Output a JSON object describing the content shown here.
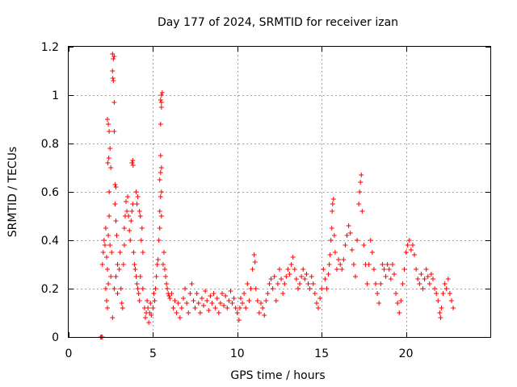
{
  "chart_data": {
    "type": "scatter",
    "title": "Day 177 of 2024, SRMTID for receiver izan",
    "xlabel": "GPS time / hours",
    "ylabel": "SRMTID / TECUs",
    "xlim": [
      0,
      25
    ],
    "ylim": [
      0,
      1.2
    ],
    "xticks": [
      "0",
      "5",
      "10",
      "15",
      "20"
    ],
    "xtick_values": [
      0,
      5,
      10,
      15,
      20
    ],
    "yticks": [
      "0",
      "0.2",
      "0.4",
      "0.6",
      "0.8",
      "1",
      "1.2"
    ],
    "ytick_values": [
      0,
      0.2,
      0.4,
      0.6,
      0.8,
      1.0,
      1.2
    ],
    "grid": true,
    "marker": "+",
    "color": "#ff0000",
    "series": [
      {
        "name": "SRMTID",
        "points": [
          [
            1.9,
            0.0
          ],
          [
            1.95,
            0.0
          ],
          [
            2.0,
            0.0
          ],
          [
            2.0,
            0.3
          ],
          [
            2.05,
            0.35
          ],
          [
            2.1,
            0.4
          ],
          [
            2.15,
            0.38
          ],
          [
            2.2,
            0.45
          ],
          [
            2.25,
            0.33
          ],
          [
            2.3,
            0.28
          ],
          [
            2.35,
            0.42
          ],
          [
            2.4,
            0.5
          ],
          [
            2.45,
            0.38
          ],
          [
            2.5,
            0.25
          ],
          [
            2.55,
            0.35
          ],
          [
            2.2,
            0.2
          ],
          [
            2.25,
            0.15
          ],
          [
            2.3,
            0.12
          ],
          [
            2.35,
            0.22
          ],
          [
            2.3,
            0.9
          ],
          [
            2.35,
            0.88
          ],
          [
            2.4,
            0.85
          ],
          [
            2.32,
            0.72
          ],
          [
            2.38,
            0.74
          ],
          [
            2.4,
            0.6
          ],
          [
            2.45,
            0.78
          ],
          [
            2.5,
            0.7
          ],
          [
            2.6,
            1.17
          ],
          [
            2.65,
            1.15
          ],
          [
            2.7,
            1.16
          ],
          [
            2.6,
            1.1
          ],
          [
            2.62,
            1.07
          ],
          [
            2.65,
            1.06
          ],
          [
            2.7,
            0.97
          ],
          [
            2.7,
            0.85
          ],
          [
            2.75,
            0.63
          ],
          [
            2.8,
            0.62
          ],
          [
            2.75,
            0.55
          ],
          [
            2.8,
            0.48
          ],
          [
            2.85,
            0.42
          ],
          [
            2.9,
            0.3
          ],
          [
            2.6,
            0.08
          ],
          [
            2.7,
            0.2
          ],
          [
            2.8,
            0.25
          ],
          [
            2.9,
            0.18
          ],
          [
            3.0,
            0.28
          ],
          [
            3.05,
            0.35
          ],
          [
            3.1,
            0.2
          ],
          [
            3.15,
            0.14
          ],
          [
            3.2,
            0.12
          ],
          [
            3.25,
            0.3
          ],
          [
            3.3,
            0.38
          ],
          [
            3.3,
            0.45
          ],
          [
            3.35,
            0.5
          ],
          [
            3.4,
            0.56
          ],
          [
            3.45,
            0.52
          ],
          [
            3.5,
            0.58
          ],
          [
            3.55,
            0.5
          ],
          [
            3.6,
            0.44
          ],
          [
            3.65,
            0.4
          ],
          [
            3.7,
            0.48
          ],
          [
            3.75,
            0.52
          ],
          [
            3.8,
            0.55
          ],
          [
            3.75,
            0.72
          ],
          [
            3.8,
            0.73
          ],
          [
            3.82,
            0.71
          ],
          [
            3.85,
            0.35
          ],
          [
            3.9,
            0.3
          ],
          [
            3.95,
            0.28
          ],
          [
            4.0,
            0.25
          ],
          [
            4.05,
            0.22
          ],
          [
            4.1,
            0.2
          ],
          [
            4.15,
            0.18
          ],
          [
            4.2,
            0.15
          ],
          [
            4.25,
            0.25
          ],
          [
            4.3,
            0.4
          ],
          [
            4.35,
            0.45
          ],
          [
            4.4,
            0.35
          ],
          [
            4.0,
            0.6
          ],
          [
            4.05,
            0.55
          ],
          [
            4.1,
            0.58
          ],
          [
            4.2,
            0.52
          ],
          [
            4.25,
            0.5
          ],
          [
            4.4,
            0.2
          ],
          [
            4.5,
            0.12
          ],
          [
            4.55,
            0.08
          ],
          [
            4.6,
            0.1
          ],
          [
            4.65,
            0.15
          ],
          [
            4.7,
            0.12
          ],
          [
            4.75,
            0.06
          ],
          [
            4.8,
            0.1
          ],
          [
            4.85,
            0.14
          ],
          [
            4.9,
            0.09
          ],
          [
            5.0,
            0.12
          ],
          [
            5.05,
            0.18
          ],
          [
            5.1,
            0.15
          ],
          [
            5.15,
            0.2
          ],
          [
            5.2,
            0.25
          ],
          [
            5.25,
            0.3
          ],
          [
            5.3,
            0.32
          ],
          [
            5.35,
            0.4
          ],
          [
            5.4,
            0.45
          ],
          [
            5.4,
            0.52
          ],
          [
            5.45,
            0.58
          ],
          [
            5.5,
            0.6
          ],
          [
            5.5,
            0.5
          ],
          [
            5.4,
            0.65
          ],
          [
            5.45,
            0.68
          ],
          [
            5.5,
            0.7
          ],
          [
            5.45,
            0.75
          ],
          [
            5.45,
            0.88
          ],
          [
            5.5,
            0.95
          ],
          [
            5.45,
            0.98
          ],
          [
            5.5,
            1.0
          ],
          [
            5.55,
            1.01
          ],
          [
            5.5,
            0.97
          ],
          [
            5.6,
            0.3
          ],
          [
            5.65,
            0.35
          ],
          [
            5.7,
            0.28
          ],
          [
            5.75,
            0.25
          ],
          [
            5.8,
            0.22
          ],
          [
            5.85,
            0.2
          ],
          [
            5.9,
            0.18
          ],
          [
            5.95,
            0.17
          ],
          [
            6.0,
            0.16
          ],
          [
            6.1,
            0.18
          ],
          [
            6.2,
            0.12
          ],
          [
            6.3,
            0.15
          ],
          [
            6.4,
            0.1
          ],
          [
            6.5,
            0.14
          ],
          [
            6.6,
            0.08
          ],
          [
            6.7,
            0.12
          ],
          [
            6.8,
            0.16
          ],
          [
            6.9,
            0.2
          ],
          [
            7.0,
            0.14
          ],
          [
            7.1,
            0.1
          ],
          [
            7.2,
            0.18
          ],
          [
            7.3,
            0.22
          ],
          [
            7.4,
            0.15
          ],
          [
            7.5,
            0.12
          ],
          [
            7.6,
            0.18
          ],
          [
            7.7,
            0.14
          ],
          [
            7.8,
            0.1
          ],
          [
            7.9,
            0.16
          ],
          [
            8.0,
            0.13
          ],
          [
            8.1,
            0.19
          ],
          [
            8.2,
            0.15
          ],
          [
            8.3,
            0.11
          ],
          [
            8.4,
            0.17
          ],
          [
            8.5,
            0.14
          ],
          [
            8.6,
            0.18
          ],
          [
            8.7,
            0.12
          ],
          [
            8.8,
            0.16
          ],
          [
            8.9,
            0.1
          ],
          [
            9.0,
            0.14
          ],
          [
            9.1,
            0.18
          ],
          [
            9.2,
            0.13
          ],
          [
            9.3,
            0.17
          ],
          [
            9.4,
            0.12
          ],
          [
            9.5,
            0.15
          ],
          [
            9.6,
            0.19
          ],
          [
            9.7,
            0.14
          ],
          [
            9.8,
            0.16
          ],
          [
            9.9,
            0.12
          ],
          [
            10.0,
            0.1
          ],
          [
            10.1,
            0.07
          ],
          [
            10.15,
            0.12
          ],
          [
            10.2,
            0.16
          ],
          [
            10.3,
            0.14
          ],
          [
            10.4,
            0.18
          ],
          [
            10.5,
            0.12
          ],
          [
            10.6,
            0.22
          ],
          [
            10.7,
            0.15
          ],
          [
            10.8,
            0.2
          ],
          [
            10.9,
            0.28
          ],
          [
            11.0,
            0.34
          ],
          [
            11.05,
            0.31
          ],
          [
            11.1,
            0.2
          ],
          [
            11.2,
            0.15
          ],
          [
            11.3,
            0.1
          ],
          [
            11.4,
            0.14
          ],
          [
            11.5,
            0.12
          ],
          [
            11.6,
            0.09
          ],
          [
            11.7,
            0.15
          ],
          [
            11.8,
            0.18
          ],
          [
            11.9,
            0.22
          ],
          [
            12.0,
            0.24
          ],
          [
            12.1,
            0.2
          ],
          [
            12.2,
            0.25
          ],
          [
            12.3,
            0.15
          ],
          [
            12.4,
            0.22
          ],
          [
            12.5,
            0.28
          ],
          [
            12.6,
            0.24
          ],
          [
            12.7,
            0.18
          ],
          [
            12.8,
            0.22
          ],
          [
            12.9,
            0.25
          ],
          [
            13.0,
            0.28
          ],
          [
            13.1,
            0.26
          ],
          [
            13.2,
            0.3
          ],
          [
            13.3,
            0.33
          ],
          [
            13.4,
            0.28
          ],
          [
            13.5,
            0.24
          ],
          [
            13.6,
            0.2
          ],
          [
            13.7,
            0.22
          ],
          [
            13.8,
            0.25
          ],
          [
            13.9,
            0.28
          ],
          [
            14.0,
            0.24
          ],
          [
            14.1,
            0.26
          ],
          [
            14.2,
            0.22
          ],
          [
            14.3,
            0.2
          ],
          [
            14.4,
            0.25
          ],
          [
            14.5,
            0.22
          ],
          [
            14.6,
            0.18
          ],
          [
            14.7,
            0.14
          ],
          [
            14.8,
            0.12
          ],
          [
            14.9,
            0.16
          ],
          [
            15.0,
            0.2
          ],
          [
            15.1,
            0.28
          ],
          [
            15.2,
            0.24
          ],
          [
            15.3,
            0.2
          ],
          [
            15.4,
            0.26
          ],
          [
            15.45,
            0.3
          ],
          [
            15.5,
            0.34
          ],
          [
            15.55,
            0.4
          ],
          [
            15.6,
            0.45
          ],
          [
            15.62,
            0.52
          ],
          [
            15.65,
            0.55
          ],
          [
            15.7,
            0.57
          ],
          [
            15.75,
            0.42
          ],
          [
            15.8,
            0.35
          ],
          [
            15.9,
            0.28
          ],
          [
            16.0,
            0.32
          ],
          [
            16.1,
            0.3
          ],
          [
            16.2,
            0.28
          ],
          [
            16.3,
            0.32
          ],
          [
            16.4,
            0.38
          ],
          [
            16.5,
            0.42
          ],
          [
            16.6,
            0.46
          ],
          [
            16.7,
            0.43
          ],
          [
            16.8,
            0.36
          ],
          [
            16.9,
            0.3
          ],
          [
            17.0,
            0.25
          ],
          [
            17.1,
            0.4
          ],
          [
            17.2,
            0.55
          ],
          [
            17.25,
            0.6
          ],
          [
            17.3,
            0.64
          ],
          [
            17.35,
            0.67
          ],
          [
            17.4,
            0.52
          ],
          [
            17.5,
            0.38
          ],
          [
            17.6,
            0.3
          ],
          [
            17.7,
            0.22
          ],
          [
            17.8,
            0.3
          ],
          [
            17.9,
            0.4
          ],
          [
            18.0,
            0.35
          ],
          [
            18.1,
            0.28
          ],
          [
            18.2,
            0.22
          ],
          [
            18.3,
            0.18
          ],
          [
            18.4,
            0.14
          ],
          [
            18.5,
            0.22
          ],
          [
            18.6,
            0.3
          ],
          [
            18.7,
            0.28
          ],
          [
            18.8,
            0.25
          ],
          [
            18.9,
            0.3
          ],
          [
            19.0,
            0.28
          ],
          [
            19.1,
            0.24
          ],
          [
            19.2,
            0.3
          ],
          [
            19.3,
            0.26
          ],
          [
            19.4,
            0.18
          ],
          [
            19.5,
            0.14
          ],
          [
            19.6,
            0.1
          ],
          [
            19.7,
            0.15
          ],
          [
            19.8,
            0.22
          ],
          [
            19.9,
            0.28
          ],
          [
            20.0,
            0.35
          ],
          [
            20.1,
            0.38
          ],
          [
            20.2,
            0.4
          ],
          [
            20.3,
            0.36
          ],
          [
            20.4,
            0.38
          ],
          [
            20.5,
            0.34
          ],
          [
            20.6,
            0.28
          ],
          [
            20.7,
            0.24
          ],
          [
            20.8,
            0.22
          ],
          [
            20.9,
            0.26
          ],
          [
            21.0,
            0.2
          ],
          [
            21.1,
            0.24
          ],
          [
            21.2,
            0.28
          ],
          [
            21.3,
            0.25
          ],
          [
            21.4,
            0.22
          ],
          [
            21.5,
            0.26
          ],
          [
            21.6,
            0.24
          ],
          [
            21.7,
            0.2
          ],
          [
            21.8,
            0.18
          ],
          [
            21.9,
            0.15
          ],
          [
            22.0,
            0.1
          ],
          [
            22.05,
            0.08
          ],
          [
            22.1,
            0.12
          ],
          [
            22.2,
            0.18
          ],
          [
            22.3,
            0.22
          ],
          [
            22.4,
            0.2
          ],
          [
            22.5,
            0.24
          ],
          [
            22.6,
            0.18
          ],
          [
            22.7,
            0.15
          ],
          [
            22.8,
            0.12
          ]
        ]
      }
    ]
  }
}
